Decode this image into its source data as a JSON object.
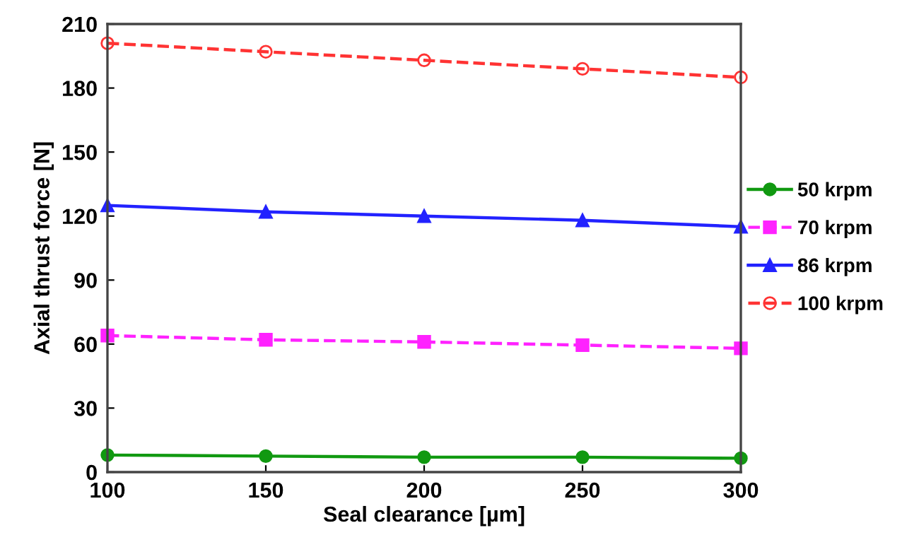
{
  "chart_data": {
    "type": "line",
    "xlabel": "Seal clearance [µm]",
    "ylabel": "Axial thrust force [N]",
    "x": [
      100,
      150,
      200,
      250,
      300
    ],
    "xlim": [
      100,
      300
    ],
    "xticks": [
      100,
      150,
      200,
      250,
      300
    ],
    "ylim": [
      0,
      210
    ],
    "yticks": [
      0,
      30,
      60,
      90,
      120,
      150,
      180,
      210
    ],
    "grid": false,
    "legend": "right",
    "series": [
      {
        "name": "50 krpm",
        "color": "#119911",
        "marker": "circle",
        "line_style": "solid",
        "values": [
          8,
          7.5,
          7,
          7,
          6.5
        ]
      },
      {
        "name": "70 krpm",
        "color": "#ff22ff",
        "marker": "square",
        "line_style": "dashed",
        "values": [
          64,
          62,
          61,
          59.5,
          58
        ]
      },
      {
        "name": "86 krpm",
        "color": "#2222ff",
        "marker": "triangle",
        "line_style": "solid",
        "values": [
          125,
          122,
          120,
          118,
          115
        ]
      },
      {
        "name": "100 krpm",
        "color": "#ff3333",
        "marker": "circle_open",
        "line_style": "dashed",
        "values": [
          201,
          197,
          193,
          189,
          185
        ]
      }
    ]
  }
}
